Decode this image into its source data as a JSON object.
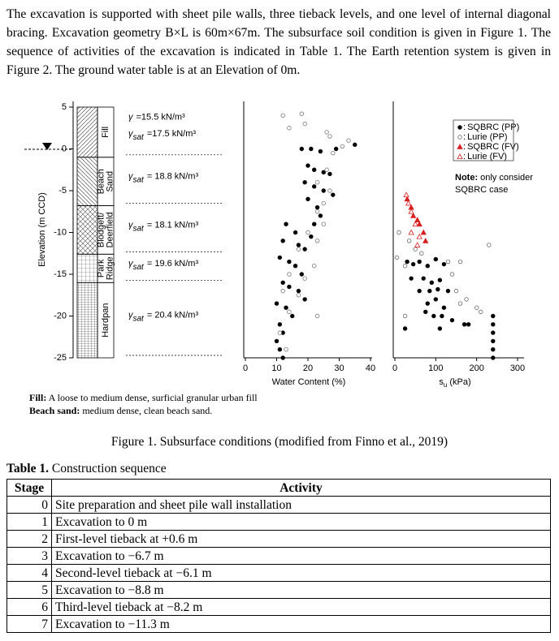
{
  "text": {
    "paragraph": "The excavation is supported with sheet pile walls, three tieback levels, and one level of internal diagonal bracing. Excavation geometry B×L is 60m×67m. The subsurface soil condition is given in Figure 1. The sequence of activities of the excavation is indicated in Table 1. The Earth retention system is given in Figure 2. The ground water table is at an Elevation of 0m."
  },
  "figure": {
    "elevation_axis": {
      "label": "Elevation (m CCD)",
      "ylim": [
        -25,
        6
      ],
      "yticks": [
        5,
        0,
        -5,
        -10,
        -15,
        -20,
        -25
      ]
    },
    "layers": [
      {
        "name": [
          "Fill"
        ],
        "top": 5,
        "bottom": -1,
        "pattern": "diagonal",
        "unit_weights": [
          {
            "symbol": "γ",
            "subscript": "",
            "text": "=15.5 kN/m³"
          },
          {
            "symbol": "γ",
            "subscript": "sat",
            "text": "=17.5 kN/m³"
          }
        ]
      },
      {
        "name": [
          "Beach",
          "Sand"
        ],
        "top": -1,
        "bottom": -6.8,
        "pattern": "diagonal-back",
        "unit_weights": [
          {
            "symbol": "γ",
            "subscript": "sat",
            "text": "= 18.8 kN/m³"
          }
        ]
      },
      {
        "name": [
          "Blodgett/",
          "Deerfield"
        ],
        "top": -6.8,
        "bottom": -12.6,
        "pattern": "cross",
        "unit_weights": [
          {
            "symbol": "γ",
            "subscript": "sat",
            "text": "= 18.1 kN/m³"
          }
        ]
      },
      {
        "name": [
          "Park",
          "Ridge"
        ],
        "top": -12.6,
        "bottom": -16,
        "pattern": "grid",
        "unit_weights": [
          {
            "symbol": "γ",
            "subscript": "sat",
            "text": "= 19.6 kN/m³"
          }
        ]
      },
      {
        "name": [
          "Hardpan"
        ],
        "top": -16,
        "bottom": -25,
        "pattern": "grid-fine",
        "unit_weights": [
          {
            "symbol": "γ",
            "subscript": "sat",
            "text": "= 20.4 kN/m³"
          }
        ]
      }
    ],
    "water_content": {
      "xlabel": "Water Content (%)",
      "xlim": [
        0,
        40
      ],
      "xticks": [
        0,
        10,
        20,
        30,
        40
      ],
      "series": [
        {
          "marker": "circle-filled",
          "color": "#000000",
          "x": [
            18,
            21,
            24,
            29,
            35,
            20,
            22,
            25,
            27,
            19,
            22,
            25,
            28,
            20,
            23,
            24,
            22,
            13,
            16,
            21,
            12,
            17,
            19,
            11,
            14,
            16,
            18,
            12,
            14,
            17,
            19,
            10,
            13,
            15,
            11,
            12,
            10,
            11,
            12
          ],
          "y": [
            0,
            0,
            -0.3,
            0,
            0.5,
            -2,
            -2.5,
            -2.8,
            -3,
            -4,
            -4.5,
            -5,
            -5.5,
            -6,
            -7,
            -8,
            -9,
            -9,
            -10,
            -10.5,
            -11,
            -11.5,
            -12,
            -13,
            -13.5,
            -14,
            -15,
            -16,
            -16.5,
            -17,
            -18,
            -18.5,
            -19,
            -20,
            -21,
            -22,
            -23,
            -24,
            -25
          ]
        },
        {
          "marker": "circle-open",
          "color": "#777777",
          "x": [
            12,
            18,
            19,
            14,
            26,
            27,
            33,
            31,
            28,
            26,
            23,
            27,
            25,
            23,
            25,
            20,
            23,
            17,
            22,
            14,
            19,
            12,
            17,
            14,
            23,
            11,
            13
          ],
          "y": [
            4,
            4.2,
            3,
            2.5,
            2,
            1.5,
            1,
            0.3,
            -0.5,
            -2.5,
            -4,
            -5,
            -6.5,
            -7.5,
            -9,
            -10,
            -11,
            -12,
            -14,
            -15,
            -15.5,
            -17,
            -17.5,
            -19.5,
            -20,
            -22,
            -24
          ]
        }
      ]
    },
    "shear_strength": {
      "xlabel": {
        "symbol": "s",
        "subscript": "u",
        "unit": "(kPa)"
      },
      "xlim": [
        0,
        300
      ],
      "xticks": [
        0,
        100,
        200,
        300
      ],
      "legend_separator": ":",
      "series": [
        {
          "name": "SQBRC (PP)",
          "marker": "circle-filled",
          "color": "#000000",
          "x": [
            30,
            45,
            60,
            80,
            100,
            120,
            40,
            70,
            90,
            110,
            60,
            85,
            105,
            130,
            80,
            100,
            120,
            75,
            95,
            115,
            140,
            170,
            180,
            25,
            110,
            240,
            240,
            240,
            240,
            240,
            240
          ],
          "y": [
            -13.5,
            -13.8,
            -13.5,
            -14,
            -13.2,
            -13.8,
            -15.5,
            -15.5,
            -16,
            -15.7,
            -17,
            -17,
            -16.8,
            -17,
            -18.5,
            -18,
            -19,
            -19.5,
            -20,
            -20,
            -20.5,
            -21,
            -21,
            -21.5,
            -21.5,
            -20,
            -21,
            -22,
            -23,
            -24,
            -25
          ]
        },
        {
          "name": "Lurie (PP)",
          "marker": "circle-open",
          "color": "#666666",
          "x": [
            10,
            35,
            50,
            65,
            130,
            160,
            25,
            140,
            150,
            160,
            175,
            210,
            25,
            200,
            230,
            5
          ],
          "y": [
            -10,
            -11,
            -12,
            -12.5,
            -13.5,
            -13.5,
            -14,
            -15,
            -17,
            -18.5,
            -18,
            -19.5,
            -20,
            -19,
            -11.5,
            -13
          ]
        },
        {
          "name": "SQBRC (FV)",
          "marker": "triangle-filled",
          "color": "#d62020",
          "x": [
            30,
            40,
            45,
            55,
            60,
            70,
            75
          ],
          "y": [
            -6,
            -7,
            -8,
            -8.5,
            -9,
            -10,
            -11
          ]
        },
        {
          "name": "Lurie (FV)",
          "marker": "triangle-open",
          "color": "#d62020",
          "x": [
            28,
            33,
            40,
            50,
            60,
            40,
            55
          ],
          "y": [
            -5.5,
            -6.5,
            -7.5,
            -9,
            -10.5,
            -10,
            -11.5
          ]
        }
      ],
      "note": {
        "label": "Note:",
        "lines": [
          "only consider",
          "SQBRC case"
        ]
      }
    },
    "definitions": [
      {
        "term": "Fill:",
        "text": "A loose to medium dense, surficial granular urban fill"
      },
      {
        "term": "Beach sand:",
        "text": "medium dense, clean beach sand."
      }
    ],
    "caption": "Figure 1. Subsurface conditions (modified from Finno et al., 2019)"
  },
  "table": {
    "title_label": "Table 1.",
    "title": "Construction sequence",
    "header": [
      "Stage",
      "Activity"
    ],
    "rows": [
      [
        "0",
        "Site preparation and sheet pile wall installation"
      ],
      [
        "1",
        "Excavation to 0 m"
      ],
      [
        "2",
        "First-level tieback at +0.6 m"
      ],
      [
        "3",
        "Excavation to −6.7 m"
      ],
      [
        "4",
        "Second-level tieback at −6.1 m"
      ],
      [
        "5",
        "Excavation to −8.8 m"
      ],
      [
        "6",
        "Third-level tieback at −8.2 m"
      ],
      [
        "7",
        "Excavation to −11.3 m"
      ]
    ]
  }
}
